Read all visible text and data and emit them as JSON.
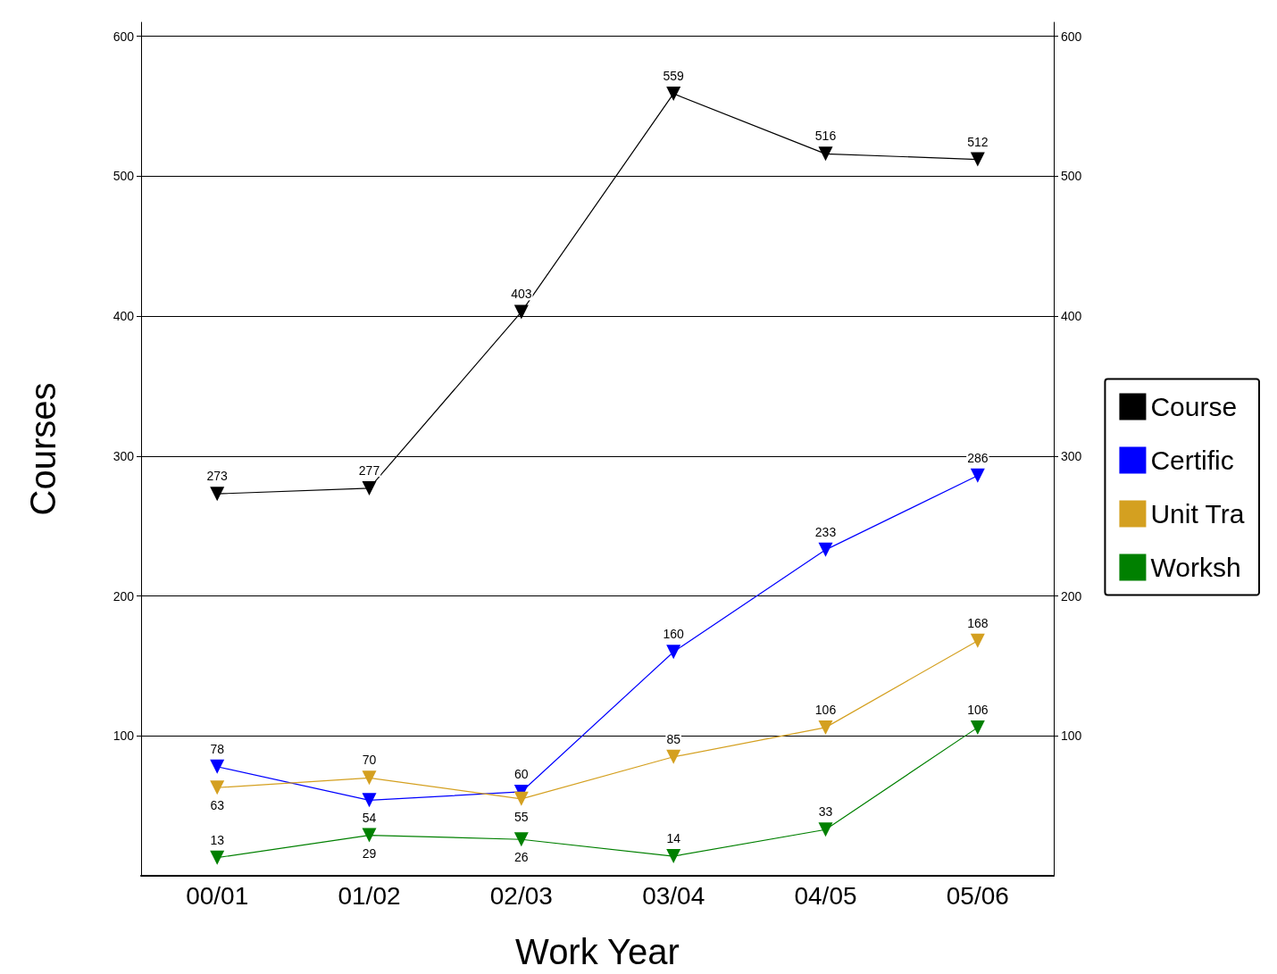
{
  "chart_data": {
    "type": "line",
    "xlabel": "Work Year",
    "ylabel": "Courses",
    "categories": [
      "00/01",
      "01/02",
      "02/03",
      "03/04",
      "04/05",
      "05/06"
    ],
    "series": [
      {
        "name": "Course",
        "color": "#000000",
        "values": [
          273,
          277,
          403,
          559,
          516,
          512
        ]
      },
      {
        "name": "Certific",
        "color": "#0000ff",
        "values": [
          78,
          54,
          60,
          160,
          233,
          286
        ]
      },
      {
        "name": "Unit Tra",
        "color": "#d4a020",
        "values": [
          63,
          70,
          55,
          85,
          106,
          168
        ]
      },
      {
        "name": "Worksh",
        "color": "#008000",
        "values": [
          13,
          29,
          26,
          14,
          33,
          106
        ]
      }
    ],
    "ylim": [
      0,
      610
    ],
    "yticks": [
      100,
      200,
      300,
      400,
      500,
      600
    ],
    "y2lim": [
      0,
      610
    ],
    "y2ticks": [
      100,
      200,
      300,
      400,
      500,
      600
    ],
    "grid": "y",
    "legend": "right",
    "marker": "triangle",
    "line_style": "solid",
    "data_labels": true
  }
}
